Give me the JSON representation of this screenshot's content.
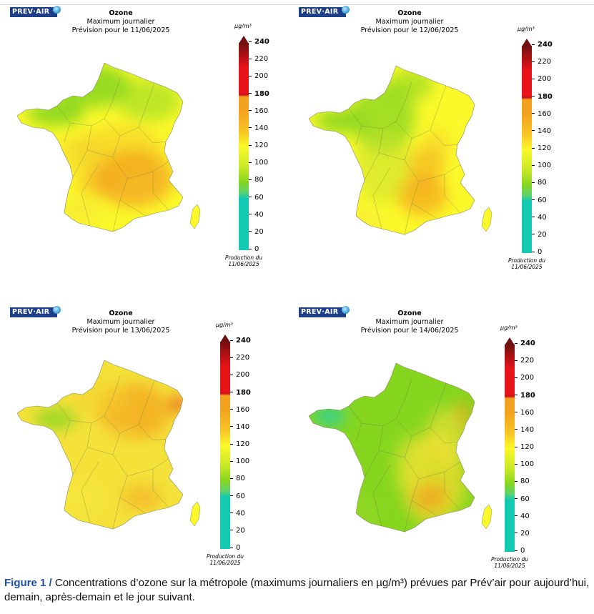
{
  "figure": {
    "caption_label": "Figure 1 /",
    "caption_text": " Concentrations d’ozone sur la métropole (maximums journaliers en µg/m³) prévues par Prév’air pour aujourd’hui, demain, après-demain et le jour suivant."
  },
  "legend": {
    "unit": "µg/m³",
    "ticks": [
      "240",
      "220",
      "200",
      "180",
      "160",
      "140",
      "120",
      "100",
      "80",
      "60",
      "40",
      "20",
      "0"
    ],
    "bold_ticks": [
      "240",
      "180"
    ],
    "colors": {
      "teal": "#14c9b2",
      "green": "#86d61f",
      "yellow": "#fbf92a",
      "orange": "#f3a21f",
      "red": "#e9141a",
      "darkred": "#6e1010"
    }
  },
  "panels": [
    {
      "logo": "PREV·AIR",
      "title": "Ozone",
      "subtitle": "Maximum journalier",
      "forecast": "Prévision pour le 11/06/2025",
      "production": "Production du",
      "production_date": "11/06/2025"
    },
    {
      "logo": "PREV·AIR",
      "title": "Ozone",
      "subtitle": "Maximum journalier",
      "forecast": "Prévision pour le 12/06/2025",
      "production": "Production du",
      "production_date": "11/06/2025"
    },
    {
      "logo": "PREV·AIR",
      "title": "Ozone",
      "subtitle": "Maximum journalier",
      "forecast": "Prévision pour le 13/06/2025",
      "production": "Production du",
      "production_date": "11/06/2025"
    },
    {
      "logo": "PREV·AIR",
      "title": "Ozone",
      "subtitle": "Maximum journalier",
      "forecast": "Prévision pour le 14/06/2025",
      "production": "Production du",
      "production_date": "11/06/2025"
    }
  ]
}
